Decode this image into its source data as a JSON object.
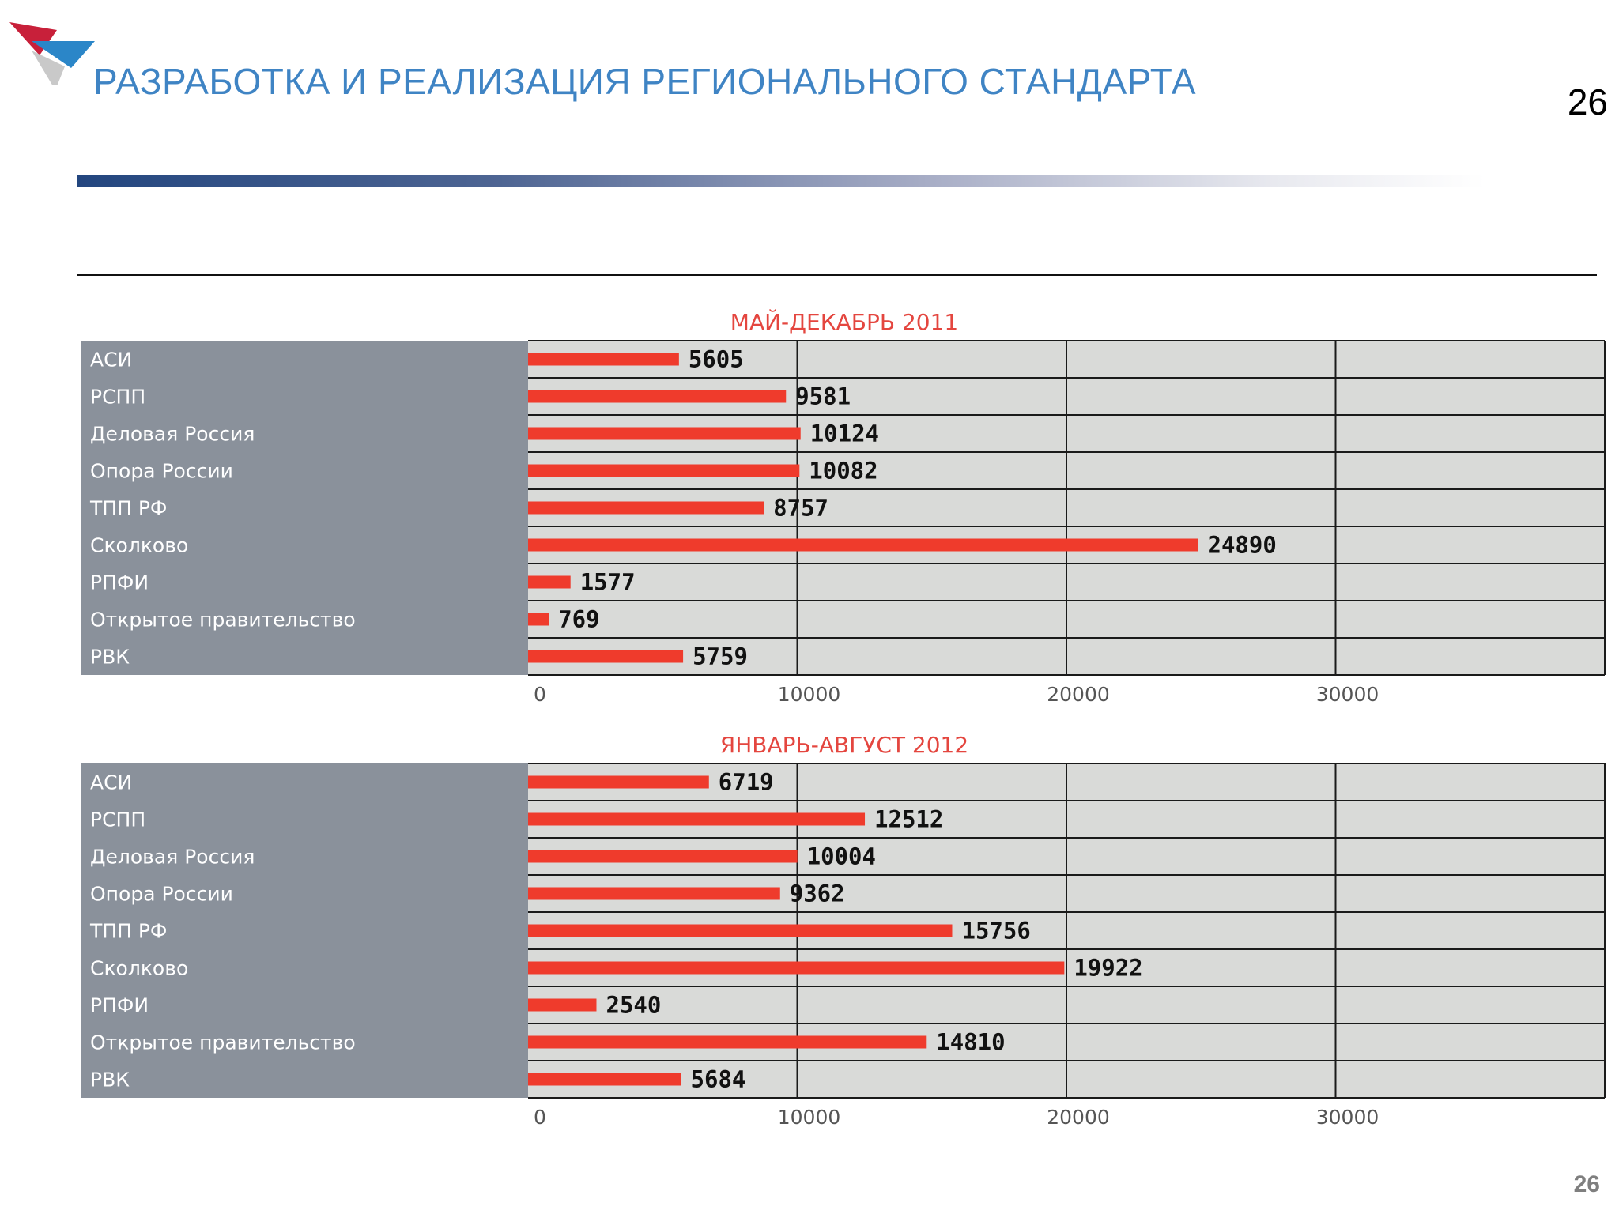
{
  "slide": {
    "title": "РАЗРАБОТКА И РЕАЛИЗАЦИЯ РЕГИОНАЛЬНОГО СТАНДАРТА",
    "page_number": "26",
    "page_number_footer": "26",
    "colors": {
      "title": "#3f84c4",
      "chart_title": "#e4463f",
      "bar": "#ef3b2c",
      "label_panel": "#8a919b",
      "plot_area": "#d9dad8",
      "grid": "#1a1a1a"
    }
  },
  "chart_data": [
    {
      "type": "bar",
      "orientation": "horizontal",
      "title": "МАЙ-ДЕКАБРЬ 2011",
      "categories": [
        "АСИ",
        "РСПП",
        "Деловая Россия",
        "Опора России",
        "ТПП РФ",
        "Сколково",
        "РПФИ",
        "Открытое правительство",
        "РВК"
      ],
      "values": [
        5605,
        9581,
        10124,
        10082,
        8757,
        24890,
        1577,
        769,
        5759
      ],
      "xlim": [
        0,
        40000
      ],
      "xticks": [
        0,
        10000,
        20000,
        30000
      ],
      "grid": true,
      "data_labels": true
    },
    {
      "type": "bar",
      "orientation": "horizontal",
      "title": "ЯНВАРЬ-АВГУСТ 2012",
      "categories": [
        "АСИ",
        "РСПП",
        "Деловая Россия",
        "Опора России",
        "ТПП РФ",
        "Сколково",
        "РПФИ",
        "Открытое правительство",
        "РВК"
      ],
      "values": [
        6719,
        12512,
        10004,
        9362,
        15756,
        19922,
        2540,
        14810,
        5684
      ],
      "xlim": [
        0,
        40000
      ],
      "xticks": [
        0,
        10000,
        20000,
        30000
      ],
      "grid": true,
      "data_labels": true
    }
  ]
}
